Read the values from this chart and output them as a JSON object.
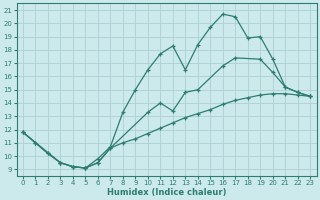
{
  "xlabel": "Humidex (Indice chaleur)",
  "bg_color": "#cce9eb",
  "grid_color": "#b0d4d6",
  "line_color": "#2e7d72",
  "xlim": [
    -0.5,
    23.5
  ],
  "ylim": [
    8.5,
    21.5
  ],
  "xticks": [
    0,
    1,
    2,
    3,
    4,
    5,
    6,
    7,
    8,
    9,
    10,
    11,
    12,
    13,
    14,
    15,
    16,
    17,
    18,
    19,
    20,
    21,
    22,
    23
  ],
  "yticks": [
    9,
    10,
    11,
    12,
    13,
    14,
    15,
    16,
    17,
    18,
    19,
    20,
    21
  ],
  "line1_x": [
    0,
    1,
    2,
    3,
    4,
    5,
    6,
    7,
    8,
    9,
    10,
    11,
    12,
    13,
    14,
    15,
    16,
    17,
    18,
    19,
    20,
    21,
    22,
    23
  ],
  "line1_y": [
    11.8,
    11.0,
    10.2,
    9.5,
    9.2,
    9.1,
    9.5,
    10.6,
    11.0,
    11.3,
    11.7,
    12.1,
    12.5,
    12.9,
    13.2,
    13.5,
    13.9,
    14.2,
    14.4,
    14.6,
    14.7,
    14.7,
    14.6,
    14.5
  ],
  "line2_x": [
    0,
    3,
    4,
    5,
    6,
    7,
    10,
    11,
    12,
    13,
    14,
    16,
    17,
    19,
    20,
    21,
    22,
    23
  ],
  "line2_y": [
    11.8,
    9.5,
    9.2,
    9.1,
    9.5,
    10.6,
    13.3,
    14.0,
    13.4,
    14.8,
    15.0,
    16.8,
    17.4,
    17.3,
    16.3,
    15.2,
    14.8,
    14.5
  ],
  "line3_x": [
    0,
    1,
    2,
    3,
    4,
    5,
    6,
    7,
    8,
    9,
    10,
    11,
    12,
    13,
    14,
    15,
    16,
    17,
    18,
    19,
    20,
    21,
    22,
    23
  ],
  "line3_y": [
    11.8,
    11.0,
    10.2,
    9.5,
    9.2,
    9.1,
    9.8,
    10.7,
    13.3,
    15.0,
    16.5,
    17.7,
    18.3,
    16.5,
    18.4,
    19.7,
    20.7,
    20.5,
    18.9,
    19.0,
    17.3,
    15.2,
    14.8,
    14.5
  ]
}
